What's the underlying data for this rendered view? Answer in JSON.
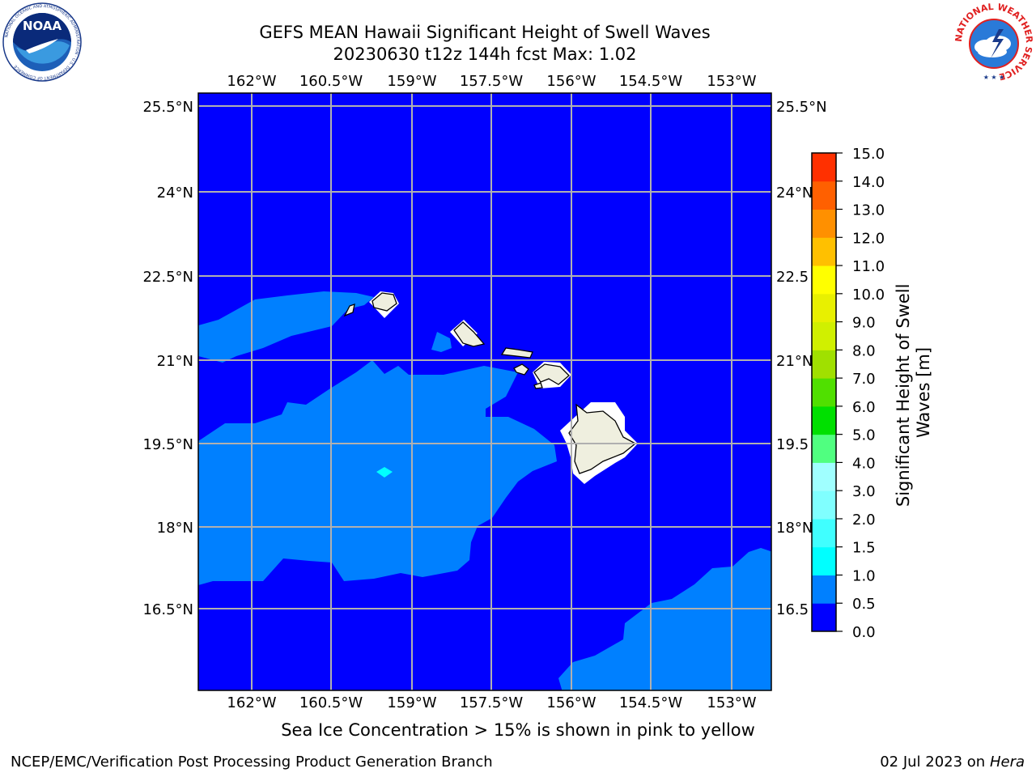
{
  "header": {
    "title_line1": "GEFS MEAN Hawaii Significant Height of Swell Waves",
    "title_line2": "20230630 t12z 144h fcst   Max: 1.02"
  },
  "logos": {
    "noaa": {
      "text": "NOAA",
      "ring_text": "NATIONAL OCEANIC AND ATMOSPHERIC ADMINISTRATION · U.S. DEPARTMENT OF COMMERCE"
    },
    "nws": {
      "ring_text": "NATIONAL WEATHER SERVICE"
    }
  },
  "map": {
    "lon_ticks": [
      "162°W",
      "160.5°W",
      "159°W",
      "157.5°W",
      "156°W",
      "154.5°W",
      "153°W"
    ],
    "lat_ticks_left": [
      "25.5°N",
      "24°N",
      "22.5°N",
      "21°N",
      "19.5°N",
      "18°N",
      "16.5°N"
    ],
    "lat_ticks_right": [
      "25.5°N",
      "24°N",
      "22.5",
      "21°N",
      "19.5",
      "18°N",
      "16.5"
    ],
    "ocean_color": "#0000ff",
    "swell_05_1_color": "#0080ff",
    "swell_1_15_color": "#00ffff",
    "land_color": "#efefdf",
    "grid_color": "#b0b0b0"
  },
  "colorbar": {
    "label_line1": "Significant Height of Swell",
    "label_line2": "Waves [m]",
    "levels": [
      "0.0",
      "0.5",
      "1.0",
      "1.5",
      "2.0",
      "3.0",
      "4.0",
      "5.0",
      "6.0",
      "7.0",
      "8.0",
      "9.0",
      "10.0",
      "11.0",
      "12.0",
      "13.0",
      "14.0",
      "15.0"
    ],
    "colors": [
      "#0000ff",
      "#0080ff",
      "#00ffff",
      "#40ffff",
      "#80ffff",
      "#a0ffff",
      "#50ff80",
      "#00e000",
      "#50e000",
      "#a0e000",
      "#d0f000",
      "#e8f000",
      "#ffff00",
      "#ffc000",
      "#ff9000",
      "#ff6000",
      "#ff3000",
      "#ff0000"
    ]
  },
  "subcaption": "Sea Ice Concentration > 15% is shown in pink to yellow",
  "footer": {
    "left": "NCEP/EMC/Verification Post Processing Product Generation Branch",
    "right_prefix": "02 Jul 2023 on ",
    "right_host": "Hera"
  }
}
